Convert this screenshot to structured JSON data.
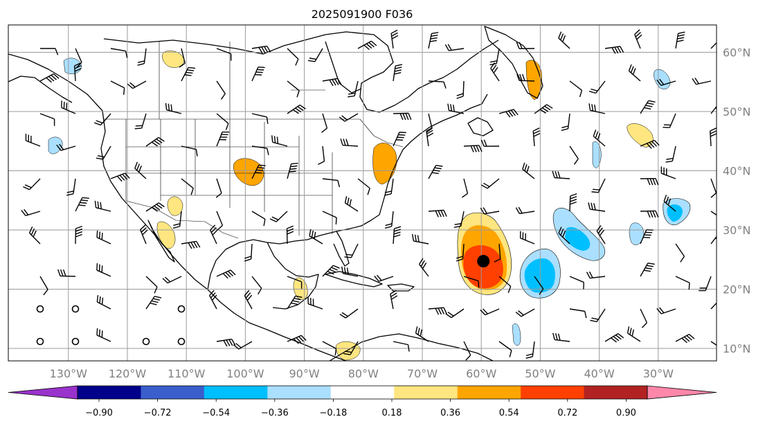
{
  "title": "2025091900 F036",
  "map": {
    "lon_ticks": [
      {
        "lon": -130,
        "label": "130°W"
      },
      {
        "lon": -120,
        "label": "120°W"
      },
      {
        "lon": -110,
        "label": "110°W"
      },
      {
        "lon": -100,
        "label": "100°W"
      },
      {
        "lon": -90,
        "label": "90°W"
      },
      {
        "lon": -80,
        "label": "80°W"
      },
      {
        "lon": -70,
        "label": "70°W"
      },
      {
        "lon": -60,
        "label": "60°W"
      },
      {
        "lon": -50,
        "label": "50°W"
      },
      {
        "lon": -40,
        "label": "40°W"
      },
      {
        "lon": -30,
        "label": "30°W"
      }
    ],
    "lat_ticks": [
      {
        "lat": 60,
        "label": "60°N"
      },
      {
        "lat": 50,
        "label": "50°N"
      },
      {
        "lat": 40,
        "label": "40°N"
      },
      {
        "lat": 30,
        "label": "30°N"
      },
      {
        "lat": 20,
        "label": "20°N"
      },
      {
        "lat": 10,
        "label": "10°N"
      }
    ],
    "extent": {
      "lon_min": -140,
      "lon_max": -20,
      "lat_min": 8,
      "lat_max": 65
    },
    "storm_marker": {
      "lon": -60,
      "lat": 24.5,
      "color": "#000000"
    }
  },
  "colorbar": {
    "levels": [
      "−0.90",
      "−0.72",
      "−0.54",
      "−0.36",
      "−0.18",
      "0.18",
      "0.36",
      "0.54",
      "0.72",
      "0.90"
    ],
    "colors": [
      "#9933cc",
      "#00008b",
      "#3a5fcd",
      "#00bfff",
      "#aadfff",
      "#ffffff",
      "#ffe680",
      "#ffa500",
      "#ff4000",
      "#b22222",
      "#ff88aa"
    ]
  }
}
